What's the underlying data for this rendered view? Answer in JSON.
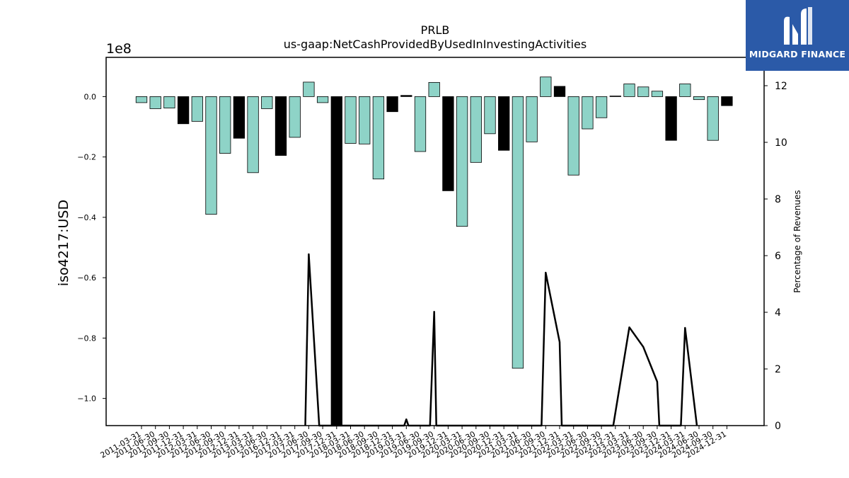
{
  "chart_data": {
    "type": "bar",
    "title": "PRLB",
    "subtitle": "us-gaap:NetCashProvidedByUsedInInvestingActivities",
    "ylabel": "iso4217:USD",
    "y_offset_label": "1e8",
    "y2label": "Percentage of Revenues",
    "ylim": [
      -1.09,
      0.13
    ],
    "y_scale_note": "values in units of 1e8 USD",
    "y2lim": [
      0,
      13
    ],
    "yticks": [
      "0.0",
      "−0.2",
      "−0.4",
      "−0.6",
      "−0.8",
      "−1.0"
    ],
    "y2ticks": [
      "0",
      "2",
      "4",
      "6",
      "8",
      "10",
      "12"
    ],
    "grid": false,
    "categories": [
      "2011-03-31",
      "2011-06-30",
      "2011-09-30",
      "2011-12-31",
      "2012-03-31",
      "2012-06-30",
      "2012-09-30",
      "2012-12-31",
      "2013-03-31",
      "2013-06-30",
      "2016-12-31",
      "2017-03-31",
      "2017-06-30",
      "2017-09-30",
      "2017-12-31",
      "2018-03-31",
      "2018-06-30",
      "2018-09-30",
      "2018-12-31",
      "2019-03-31",
      "2019-06-30",
      "2019-09-30",
      "2019-12-31",
      "2020-03-31",
      "2020-06-30",
      "2020-09-30",
      "2020-12-31",
      "2021-03-31",
      "2021-06-30",
      "2021-09-30",
      "2021-12-31",
      "2022-03-31",
      "2022-06-30",
      "2022-09-30",
      "2022-12-31",
      "2023-03-31",
      "2023-06-30",
      "2023-09-30",
      "2023-12-31",
      "2024-03-31",
      "2024-06-30",
      "2024-09-30",
      "2024-12-31"
    ],
    "series": [
      {
        "values": [
          -0.02,
          -0.04,
          -0.038,
          -0.09,
          -0.082,
          -0.39,
          -0.188,
          -0.138,
          -0.252,
          -0.04,
          -0.195,
          -0.135,
          0.048,
          -0.02,
          -1.1,
          -0.155,
          -0.157,
          -0.273,
          -0.05,
          0.004,
          -0.182,
          0.047,
          -0.312,
          -0.43,
          -0.218,
          -0.123,
          -0.178,
          -0.9,
          -0.15,
          0.065,
          0.034,
          -0.26,
          -0.107,
          -0.07,
          0.002,
          0.042,
          0.032,
          0.018,
          -0.145,
          0.042,
          -0.01,
          -0.145,
          -0.03
        ],
        "highlight": [
          false,
          false,
          false,
          true,
          false,
          false,
          false,
          true,
          false,
          false,
          true,
          false,
          false,
          false,
          true,
          false,
          false,
          false,
          true,
          true,
          false,
          false,
          true,
          false,
          false,
          false,
          true,
          false,
          false,
          false,
          true,
          false,
          false,
          false,
          true,
          false,
          false,
          false,
          true,
          false,
          false,
          false,
          true
        ]
      },
      {
        "line_points": [
          {
            "x": 11.75,
            "y": 0
          },
          {
            "x": 12,
            "y": 6.05
          },
          {
            "x": 12.75,
            "y": 0
          },
          {
            "x": 18.85,
            "y": 0
          },
          {
            "x": 19,
            "y": 0.22
          },
          {
            "x": 19.15,
            "y": 0
          },
          {
            "x": 20.7,
            "y": 0
          },
          {
            "x": 21,
            "y": 4.02
          },
          {
            "x": 21.15,
            "y": 0
          },
          {
            "x": 28.7,
            "y": 0
          },
          {
            "x": 29,
            "y": 5.4
          },
          {
            "x": 30,
            "y": 2.95
          },
          {
            "x": 30.15,
            "y": 0
          },
          {
            "x": 33.85,
            "y": 0
          },
          {
            "x": 35,
            "y": 3.47
          },
          {
            "x": 36,
            "y": 2.78
          },
          {
            "x": 37,
            "y": 1.55
          },
          {
            "x": 37.15,
            "y": 0
          },
          {
            "x": 38.7,
            "y": 0
          },
          {
            "x": 39,
            "y": 3.45
          },
          {
            "x": 39.85,
            "y": 0
          }
        ]
      }
    ],
    "colors": {
      "bar": "#8ed3c7",
      "highlight": "#000000",
      "line": "#000000",
      "edge": "#000000"
    }
  },
  "logo": {
    "brand": "MIDGARD FINANCE",
    "background": "#2b5aa8"
  }
}
